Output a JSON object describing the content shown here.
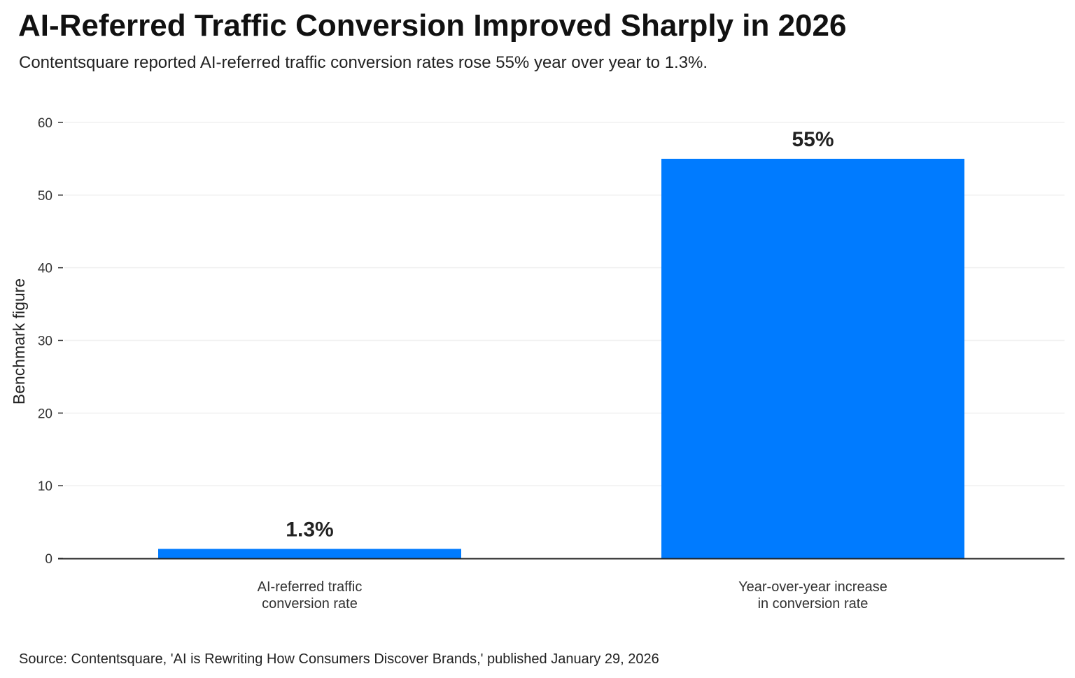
{
  "title": "AI-Referred Traffic Conversion Improved Sharply in 2026",
  "subtitle": "Contentsquare reported AI-referred traffic conversion rates rose 55% year over year to 1.3%.",
  "source": "Source: Contentsquare, 'AI is Rewriting How Consumers Discover Brands,' published January 29, 2026",
  "chart_data": {
    "type": "bar",
    "categories": [
      [
        "AI-referred traffic",
        "conversion rate"
      ],
      [
        "Year-over-year increase",
        "in conversion rate"
      ]
    ],
    "values": [
      1.3,
      55
    ],
    "data_labels": [
      "1.3%",
      "55%"
    ],
    "xlabel": "",
    "ylabel": "Benchmark figure",
    "ylim": [
      0,
      60
    ],
    "yticks": [
      0,
      10,
      20,
      30,
      40,
      50,
      60
    ],
    "grid": true,
    "bar_color": "#007BFF"
  }
}
